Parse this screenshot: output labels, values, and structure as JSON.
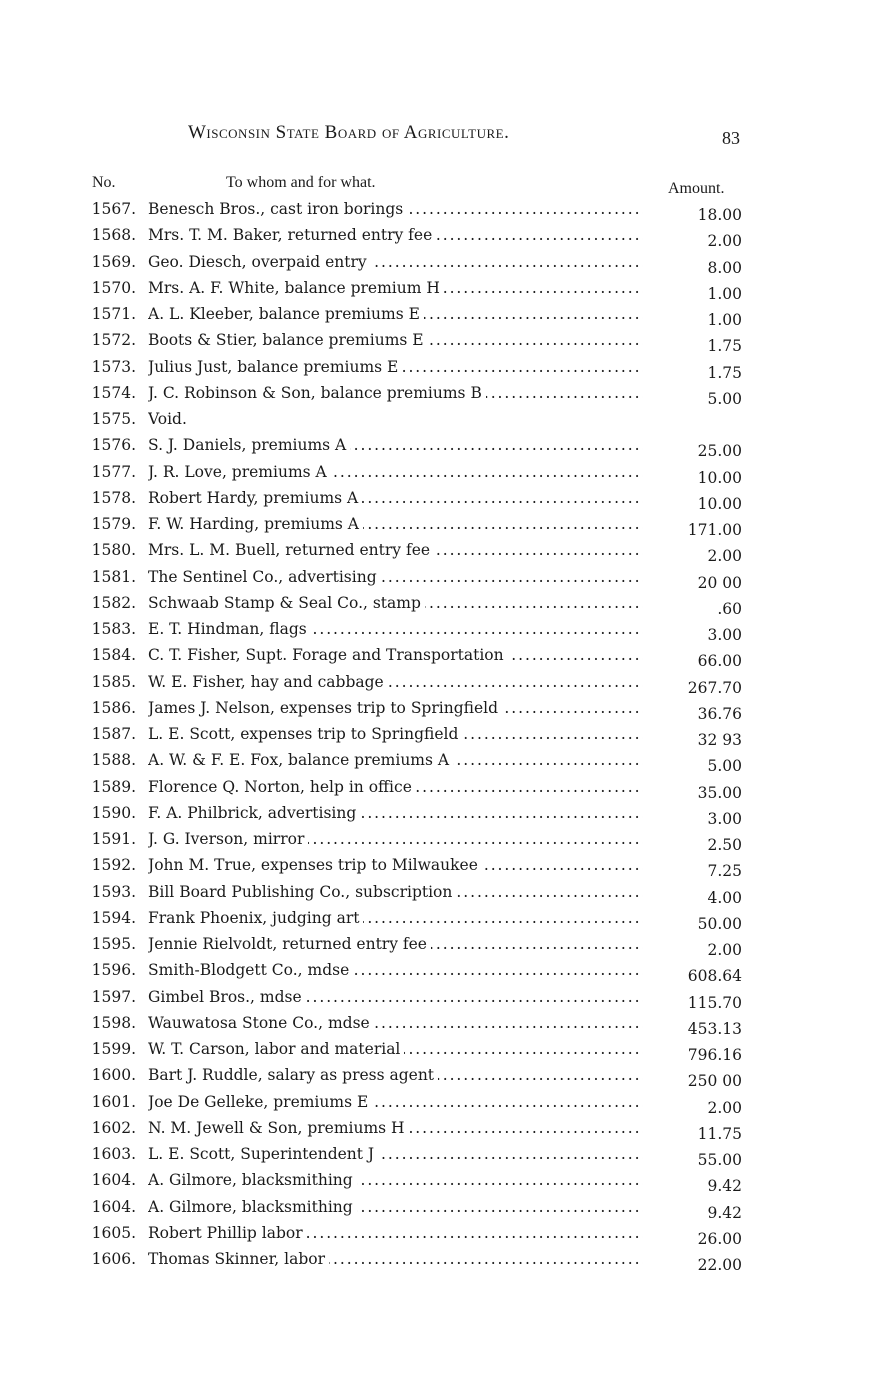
{
  "header": {
    "title": "Wisconsin State Board of Agriculture.",
    "page_number": "83"
  },
  "columns": {
    "no": "No.",
    "to_whom": "To whom and for what.",
    "amount": "Amount."
  },
  "rows": [
    {
      "no": "1567.",
      "desc": "Benesch Bros., cast iron borings",
      "amount": "18.00"
    },
    {
      "no": "1568.",
      "desc": "Mrs. T. M. Baker, returned entry fee",
      "amount": "2.00"
    },
    {
      "no": "1569.",
      "desc": "Geo. Diesch, overpaid entry",
      "amount": "8.00"
    },
    {
      "no": "1570.",
      "desc": "Mrs. A. F. White, balance premium H",
      "amount": "1.00"
    },
    {
      "no": "1571.",
      "desc": "A. L. Kleeber, balance premiums E",
      "amount": "1.00"
    },
    {
      "no": "1572.",
      "desc": "Boots & Stier, balance premiums E",
      "amount": "1.75"
    },
    {
      "no": "1573.",
      "desc": "Julius Just, balance premiums E",
      "amount": "1.75"
    },
    {
      "no": "1574.",
      "desc": "J. C. Robinson & Son, balance premiums B",
      "amount": "5.00"
    },
    {
      "no": "1575.",
      "desc": "Void.",
      "amount": ""
    },
    {
      "no": "1576.",
      "desc": "S. J. Daniels, premiums A",
      "amount": "25.00"
    },
    {
      "no": "1577.",
      "desc": "J. R. Love, premiums A",
      "amount": "10.00"
    },
    {
      "no": "1578.",
      "desc": "Robert Hardy, premiums A",
      "amount": "10.00"
    },
    {
      "no": "1579.",
      "desc": "F. W. Harding, premiums A",
      "amount": "171.00"
    },
    {
      "no": "1580.",
      "desc": "Mrs. L. M. Buell, returned entry fee",
      "amount": "2.00"
    },
    {
      "no": "1581.",
      "desc": "The Sentinel Co., advertising",
      "amount": "20 00"
    },
    {
      "no": "1582.",
      "desc": "Schwaab Stamp & Seal Co., stamp",
      "amount": ".60"
    },
    {
      "no": "1583.",
      "desc": "E. T. Hindman, flags",
      "amount": "3.00"
    },
    {
      "no": "1584.",
      "desc": "C. T. Fisher, Supt. Forage and Transportation",
      "amount": "66.00"
    },
    {
      "no": "1585.",
      "desc": "W. E. Fisher, hay and cabbage",
      "amount": "267.70"
    },
    {
      "no": "1586.",
      "desc": "James J. Nelson, expenses trip to Springfield",
      "amount": "36.76"
    },
    {
      "no": "1587.",
      "desc": "L. E. Scott, expenses trip to Springfield",
      "amount": "32 93"
    },
    {
      "no": "1588.",
      "desc": "A. W. & F. E. Fox, balance premiums A",
      "amount": "5.00"
    },
    {
      "no": "1589.",
      "desc": "Florence Q. Norton, help in office",
      "amount": "35.00"
    },
    {
      "no": "1590.",
      "desc": "F. A. Philbrick, advertising",
      "amount": "3.00"
    },
    {
      "no": "1591.",
      "desc": "J. G. Iverson, mirror",
      "amount": "2.50"
    },
    {
      "no": "1592.",
      "desc": "John M. True, expenses trip to Milwaukee",
      "amount": "7.25"
    },
    {
      "no": "1593.",
      "desc": "Bill Board Publishing Co., subscription",
      "amount": "4.00"
    },
    {
      "no": "1594.",
      "desc": "Frank Phoenix, judging art",
      "amount": "50.00"
    },
    {
      "no": "1595.",
      "desc": "Jennie Rielvoldt, returned entry fee",
      "amount": "2.00"
    },
    {
      "no": "1596.",
      "desc": "Smith-Blodgett Co., mdse",
      "amount": "608.64"
    },
    {
      "no": "1597.",
      "desc": "Gimbel Bros., mdse",
      "amount": "115.70"
    },
    {
      "no": "1598.",
      "desc": "Wauwatosa Stone Co., mdse",
      "amount": "453.13"
    },
    {
      "no": "1599.",
      "desc": "W. T. Carson, labor and material",
      "amount": "796.16"
    },
    {
      "no": "1600.",
      "desc": "Bart J. Ruddle, salary as press agent",
      "amount": "250 00"
    },
    {
      "no": "1601.",
      "desc": "Joe De Gelleke, premiums E",
      "amount": "2.00"
    },
    {
      "no": "1602.",
      "desc": "N. M. Jewell & Son, premiums H",
      "amount": "11.75"
    },
    {
      "no": "1603.",
      "desc": "L. E. Scott, Superintendent J",
      "amount": "55.00"
    },
    {
      "no": "1604.",
      "desc": "A. Gilmore, blacksmithing",
      "amount": "9.42"
    },
    {
      "no": "1604.",
      "desc": "A. Gilmore, blacksmithing",
      "amount": "9.42"
    },
    {
      "no": "1605.",
      "desc": "Robert Phillip labor",
      "amount": "26.00"
    },
    {
      "no": "1606.",
      "desc": "Thomas Skinner, labor",
      "amount": "22.00"
    }
  ]
}
